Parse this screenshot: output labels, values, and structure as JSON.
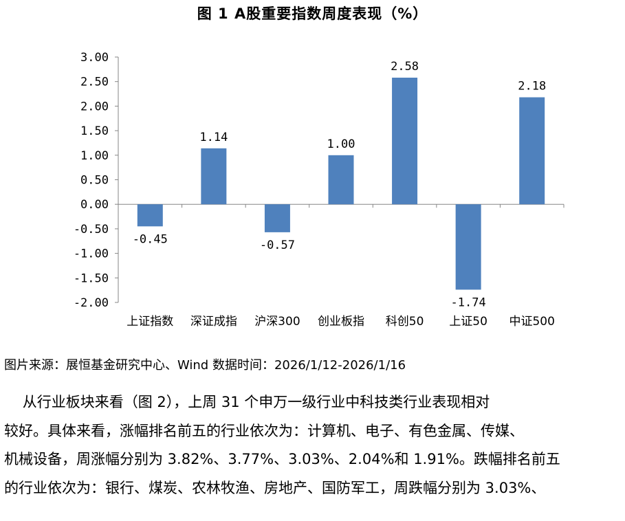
{
  "chart_data": {
    "type": "bar",
    "title": "图 1 A股重要指数周度表现（%）",
    "categories": [
      "上证指数",
      "深证成指",
      "沪深300",
      "创业板指",
      "科创50",
      "上证50",
      "中证500"
    ],
    "values": [
      -0.45,
      1.14,
      -0.57,
      1.0,
      2.58,
      -1.74,
      2.18
    ],
    "data_labels": [
      "-0.45",
      "1.14",
      "-0.57",
      "1.00",
      "2.58",
      "-1.74",
      "2.18"
    ],
    "yticks": [
      "3.00",
      "2.50",
      "2.00",
      "1.50",
      "1.00",
      "0.50",
      "0.00",
      "-0.50",
      "-1.00",
      "-1.50",
      "-2.00"
    ],
    "ylim": [
      -2.0,
      3.0
    ],
    "xlabel": "",
    "ylabel": "",
    "grid": false,
    "legend": "none",
    "bar_color": "#4f81bd"
  },
  "source": "图片来源：展恒基金研究中心、Wind  数据时间：2026/1/12-2026/1/16",
  "paragraph": [
    "    从行业板块来看（图 2），上周 31 个申万一级行业中科技类行业表现相对",
    "较好。具体来看，涨幅排名前五的行业依次为：计算机、电子、有色金属、传媒、",
    "机械设备，周涨幅分别为 3.82%、3.77%、3.03%、2.04%和 1.91%。跌幅排名前五",
    "的行业依次为：银行、煤炭、农林牧渔、房地产、国防军工，周跌幅分别为 3.03%、"
  ]
}
